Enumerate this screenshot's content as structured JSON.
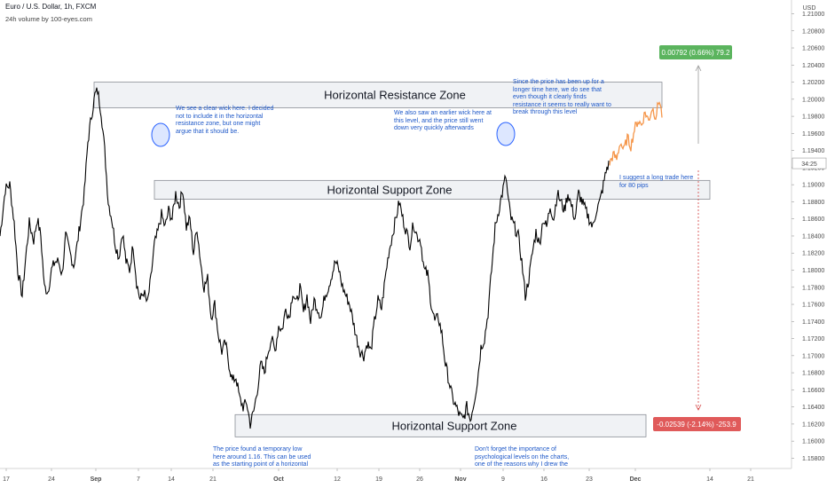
{
  "header": {
    "symbol": "Euro / U.S. Dollar, 1h, FXCM",
    "subtitle": "24h volume by 100-eyes.com"
  },
  "colors": {
    "candle": "#000000",
    "projection": "#f5964a",
    "zone_fill": "#f0f2f5",
    "zone_border": "#8a8e96",
    "note_text": "#1e58c8",
    "circle": "#2962ff",
    "gain_badge": "#5bb45e",
    "loss_badge": "#e05a5a",
    "arrow": "#999999",
    "arrow_red": "#d34040"
  },
  "chart_data": {
    "type": "line",
    "instrument": "EUR/USD",
    "currency": "USD",
    "timeframe": "1h",
    "ylim": [
      1.1568,
      1.2114
    ],
    "y_ticks": [
      "1.21000",
      "1.20800",
      "1.20600",
      "1.20400",
      "1.20200",
      "1.20000",
      "1.19800",
      "1.19600",
      "1.19400",
      "1.19200",
      "1.19000",
      "1.18800",
      "1.18600",
      "1.18400",
      "1.18200",
      "1.18000",
      "1.17800",
      "1.17600",
      "1.17400",
      "1.17200",
      "1.17000",
      "1.16800",
      "1.16600",
      "1.16400",
      "1.16200",
      "1.16000",
      "1.15800"
    ],
    "x_ticks": [
      "17",
      "24",
      "Sep",
      "7",
      "14",
      "21",
      "Oct",
      "12",
      "19",
      "26",
      "Nov",
      "9",
      "16",
      "23",
      "Dec",
      "14",
      "21"
    ],
    "x_ticks_major": [
      "Sep",
      "Oct",
      "Nov",
      "Dec"
    ],
    "last_price_label": "34:25",
    "price_path": [
      [
        0,
        1.184
      ],
      [
        6,
        1.1895
      ],
      [
        11,
        1.19
      ],
      [
        16,
        1.1855
      ],
      [
        20,
        1.18
      ],
      [
        25,
        1.177
      ],
      [
        29,
        1.1815
      ],
      [
        33,
        1.1855
      ],
      [
        38,
        1.1835
      ],
      [
        42,
        1.186
      ],
      [
        46,
        1.184
      ],
      [
        50,
        1.178
      ],
      [
        54,
        1.1775
      ],
      [
        58,
        1.18
      ],
      [
        62,
        1.181
      ],
      [
        66,
        1.181
      ],
      [
        70,
        1.1795
      ],
      [
        74,
        1.184
      ],
      [
        79,
        1.182
      ],
      [
        83,
        1.1805
      ],
      [
        87,
        1.183
      ],
      [
        91,
        1.186
      ],
      [
        95,
        1.189
      ],
      [
        99,
        1.195
      ],
      [
        103,
        1.198
      ],
      [
        107,
        1.2005
      ],
      [
        110,
        1.201
      ],
      [
        114,
        1.1985
      ],
      [
        118,
        1.194
      ],
      [
        122,
        1.188
      ],
      [
        126,
        1.186
      ],
      [
        130,
        1.183
      ],
      [
        134,
        1.1815
      ],
      [
        138,
        1.1845
      ],
      [
        142,
        1.181
      ],
      [
        146,
        1.18
      ],
      [
        150,
        1.183
      ],
      [
        154,
        1.1785
      ],
      [
        158,
        1.1765
      ],
      [
        162,
        1.1775
      ],
      [
        166,
        1.176
      ],
      [
        170,
        1.179
      ],
      [
        174,
        1.183
      ],
      [
        178,
        1.1845
      ],
      [
        182,
        1.1865
      ],
      [
        186,
        1.185
      ],
      [
        190,
        1.187
      ],
      [
        194,
        1.186
      ],
      [
        198,
        1.189
      ],
      [
        202,
        1.1875
      ],
      [
        206,
        1.1895
      ],
      [
        210,
        1.185
      ],
      [
        214,
        1.186
      ],
      [
        218,
        1.182
      ],
      [
        222,
        1.185
      ],
      [
        226,
        1.181
      ],
      [
        230,
        1.178
      ],
      [
        234,
        1.179
      ],
      [
        238,
        1.1745
      ],
      [
        242,
        1.176
      ],
      [
        246,
        1.1725
      ],
      [
        250,
        1.1705
      ],
      [
        254,
        1.1715
      ],
      [
        258,
        1.169
      ],
      [
        262,
        1.167
      ],
      [
        266,
        1.1675
      ],
      [
        270,
        1.165
      ],
      [
        274,
        1.164
      ],
      [
        278,
        1.1645
      ],
      [
        282,
        1.162
      ],
      [
        286,
        1.1635
      ],
      [
        290,
        1.166
      ],
      [
        294,
        1.169
      ],
      [
        298,
        1.168
      ],
      [
        302,
        1.1705
      ],
      [
        306,
        1.172
      ],
      [
        310,
        1.1705
      ],
      [
        314,
        1.1735
      ],
      [
        318,
        1.173
      ],
      [
        322,
        1.1755
      ],
      [
        326,
        1.1745
      ],
      [
        330,
        1.1775
      ],
      [
        334,
        1.176
      ],
      [
        338,
        1.178
      ],
      [
        342,
        1.175
      ],
      [
        346,
        1.177
      ],
      [
        350,
        1.174
      ],
      [
        354,
        1.1765
      ],
      [
        358,
        1.1755
      ],
      [
        362,
        1.1745
      ],
      [
        366,
        1.177
      ],
      [
        370,
        1.178
      ],
      [
        374,
        1.1795
      ],
      [
        378,
        1.181
      ],
      [
        382,
        1.18
      ],
      [
        386,
        1.178
      ],
      [
        390,
        1.177
      ],
      [
        394,
        1.176
      ],
      [
        398,
        1.174
      ],
      [
        402,
        1.172
      ],
      [
        406,
        1.1705
      ],
      [
        410,
        1.17
      ],
      [
        414,
        1.1715
      ],
      [
        418,
        1.1705
      ],
      [
        422,
        1.174
      ],
      [
        426,
        1.1765
      ],
      [
        430,
        1.1755
      ],
      [
        434,
        1.179
      ],
      [
        438,
        1.182
      ],
      [
        442,
        1.184
      ],
      [
        446,
        1.186
      ],
      [
        450,
        1.188
      ],
      [
        454,
        1.186
      ],
      [
        458,
        1.1845
      ],
      [
        462,
        1.183
      ],
      [
        466,
        1.1855
      ],
      [
        470,
        1.184
      ],
      [
        474,
        1.1835
      ],
      [
        478,
        1.18
      ],
      [
        482,
        1.1795
      ],
      [
        486,
        1.176
      ],
      [
        490,
        1.174
      ],
      [
        494,
        1.1745
      ],
      [
        498,
        1.1725
      ],
      [
        502,
        1.169
      ],
      [
        506,
        1.167
      ],
      [
        510,
        1.165
      ],
      [
        514,
        1.164
      ],
      [
        518,
        1.163
      ],
      [
        522,
        1.1625
      ],
      [
        526,
        1.164
      ],
      [
        530,
        1.1625
      ],
      [
        534,
        1.1645
      ],
      [
        538,
        1.167
      ],
      [
        542,
        1.171
      ],
      [
        546,
        1.172
      ],
      [
        550,
        1.175
      ],
      [
        554,
        1.18
      ],
      [
        558,
        1.185
      ],
      [
        562,
        1.187
      ],
      [
        566,
        1.189
      ],
      [
        570,
        1.191
      ],
      [
        573,
        1.188
      ],
      [
        576,
        1.186
      ],
      [
        580,
        1.185
      ],
      [
        584,
        1.184
      ],
      [
        588,
        1.181
      ],
      [
        592,
        1.177
      ],
      [
        596,
        1.179
      ],
      [
        600,
        1.182
      ],
      [
        604,
        1.1845
      ],
      [
        608,
        1.183
      ],
      [
        612,
        1.186
      ],
      [
        616,
        1.185
      ],
      [
        620,
        1.1875
      ],
      [
        624,
        1.186
      ],
      [
        628,
        1.189
      ],
      [
        632,
        1.188
      ],
      [
        636,
        1.187
      ],
      [
        640,
        1.189
      ],
      [
        644,
        1.1875
      ],
      [
        648,
        1.186
      ],
      [
        652,
        1.189
      ],
      [
        656,
        1.188
      ],
      [
        660,
        1.187
      ],
      [
        664,
        1.186
      ],
      [
        668,
        1.185
      ],
      [
        672,
        1.187
      ],
      [
        676,
        1.188
      ],
      [
        680,
        1.19
      ],
      [
        684,
        1.192
      ],
      [
        687,
        1.1925
      ]
    ],
    "projection_path": [
      [
        687,
        1.1925
      ],
      [
        691,
        1.1935
      ],
      [
        695,
        1.193
      ],
      [
        699,
        1.195
      ],
      [
        703,
        1.194
      ],
      [
        707,
        1.1955
      ],
      [
        711,
        1.1945
      ],
      [
        715,
        1.1965
      ],
      [
        719,
        1.1975
      ],
      [
        723,
        1.197
      ],
      [
        727,
        1.1985
      ],
      [
        731,
        1.1975
      ],
      [
        735,
        1.199
      ],
      [
        739,
        1.198
      ],
      [
        743,
        1.2
      ],
      [
        747,
        1.1975
      ]
    ],
    "zones": [
      {
        "name": "Horizontal Resistance Zone",
        "top": 1.202,
        "bottom": 1.199
      },
      {
        "name": "Horizontal Support Zone",
        "top": 1.1905,
        "bottom": 1.1883
      },
      {
        "name": "Horizontal Support Zone",
        "top": 1.1631,
        "bottom": 1.1605
      }
    ],
    "gain_label": "0.00792 (0.66%) 79.2",
    "loss_label": "-0.02539 (-2.14%) -253.9"
  },
  "annotations": {
    "wick_note_left": "We see a clear wick here. I decided\nnot to include it in the horizontal\nresistance zone, but one might\nargue that it should be.",
    "wick_note_mid": "We also saw an earlier wick here at\nthis level, and the price still went\ndown very quickly afterwards",
    "resistance_note": "Since the price has been up for a\nlonger time here, we do see that\neven though it clearly finds\nresistance it seems to really want to\nbreak through this level",
    "trade_note": "I suggest a long trade here\nfor 80 pips",
    "low_note": "The price found a temporary low\nhere around 1.16. This can be used\nas the starting point of a horizontal",
    "psych_note": "Don't forget the importance of\npsychological levels on the charts,\none of the reasons why I drew the"
  }
}
